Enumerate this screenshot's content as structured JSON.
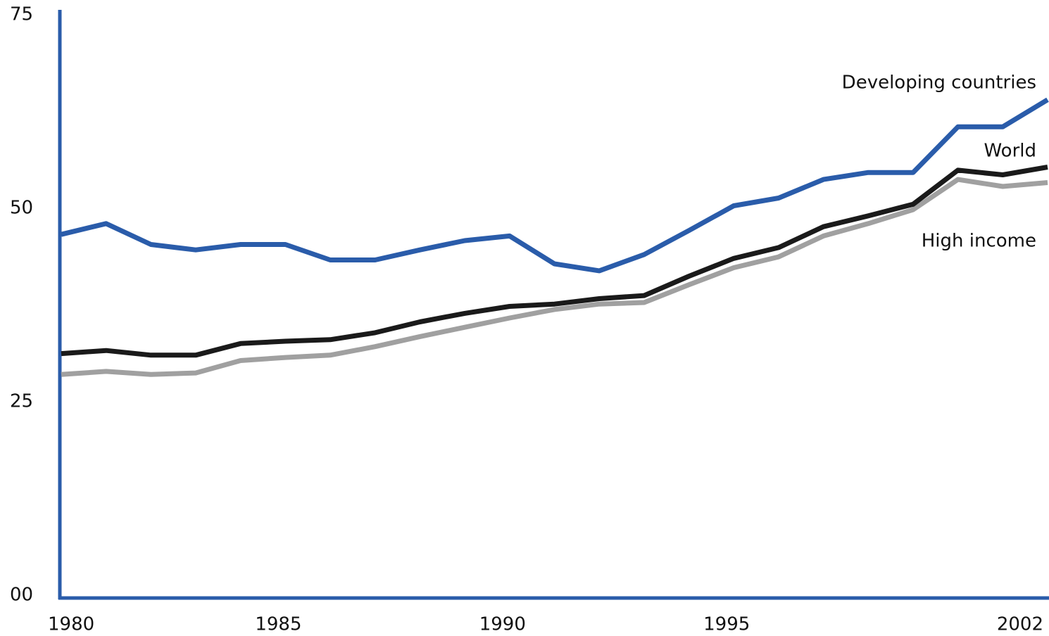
{
  "chart_data": {
    "type": "line",
    "x": [
      1980,
      1981,
      1982,
      1983,
      1984,
      1985,
      1986,
      1987,
      1988,
      1989,
      1990,
      1991,
      1992,
      1993,
      1994,
      1995,
      1996,
      1997,
      1998,
      1999,
      2000,
      2001,
      2002
    ],
    "xlim": [
      1980,
      2002
    ],
    "xticks": [
      1980,
      1985,
      1990,
      1995,
      2002
    ],
    "ylim": [
      0,
      75
    ],
    "yticks": [
      {
        "value": 0,
        "label": "00"
      },
      25,
      50,
      75
    ],
    "series": [
      {
        "name": "Developing countries",
        "color": "#2a5caa",
        "values": [
          46.8,
          48.2,
          45.5,
          44.8,
          45.5,
          45.5,
          43.5,
          43.5,
          44.8,
          46.0,
          46.6,
          43.0,
          42.1,
          44.2,
          47.3,
          50.5,
          51.5,
          53.9,
          54.8,
          54.8,
          60.7,
          60.7,
          64.2
        ]
      },
      {
        "name": "World",
        "color": "#1a1a1a",
        "values": [
          31.4,
          31.8,
          31.2,
          31.2,
          32.7,
          33.0,
          33.2,
          34.1,
          35.5,
          36.6,
          37.5,
          37.8,
          38.5,
          38.9,
          41.4,
          43.7,
          45.1,
          47.8,
          49.2,
          50.7,
          55.1,
          54.5,
          55.5
        ]
      },
      {
        "name": "High income",
        "color": "#a0a0a0",
        "values": [
          28.7,
          29.1,
          28.7,
          28.9,
          30.5,
          30.9,
          31.2,
          32.3,
          33.6,
          34.8,
          36.0,
          37.1,
          37.8,
          38.0,
          40.3,
          42.5,
          43.9,
          46.6,
          48.2,
          50.0,
          53.9,
          53.0,
          53.5
        ]
      }
    ]
  }
}
